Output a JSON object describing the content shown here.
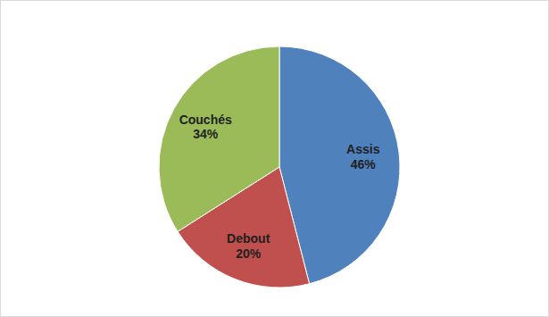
{
  "chart_data": {
    "type": "pie",
    "categories": [
      "Assis",
      "Debout",
      "Couchés"
    ],
    "values": [
      46,
      20,
      34
    ],
    "value_labels": [
      "46%",
      "20%",
      "34%"
    ],
    "colors": [
      "#4f81bd",
      "#c0504d",
      "#9bbb59"
    ],
    "data_labels": true
  }
}
